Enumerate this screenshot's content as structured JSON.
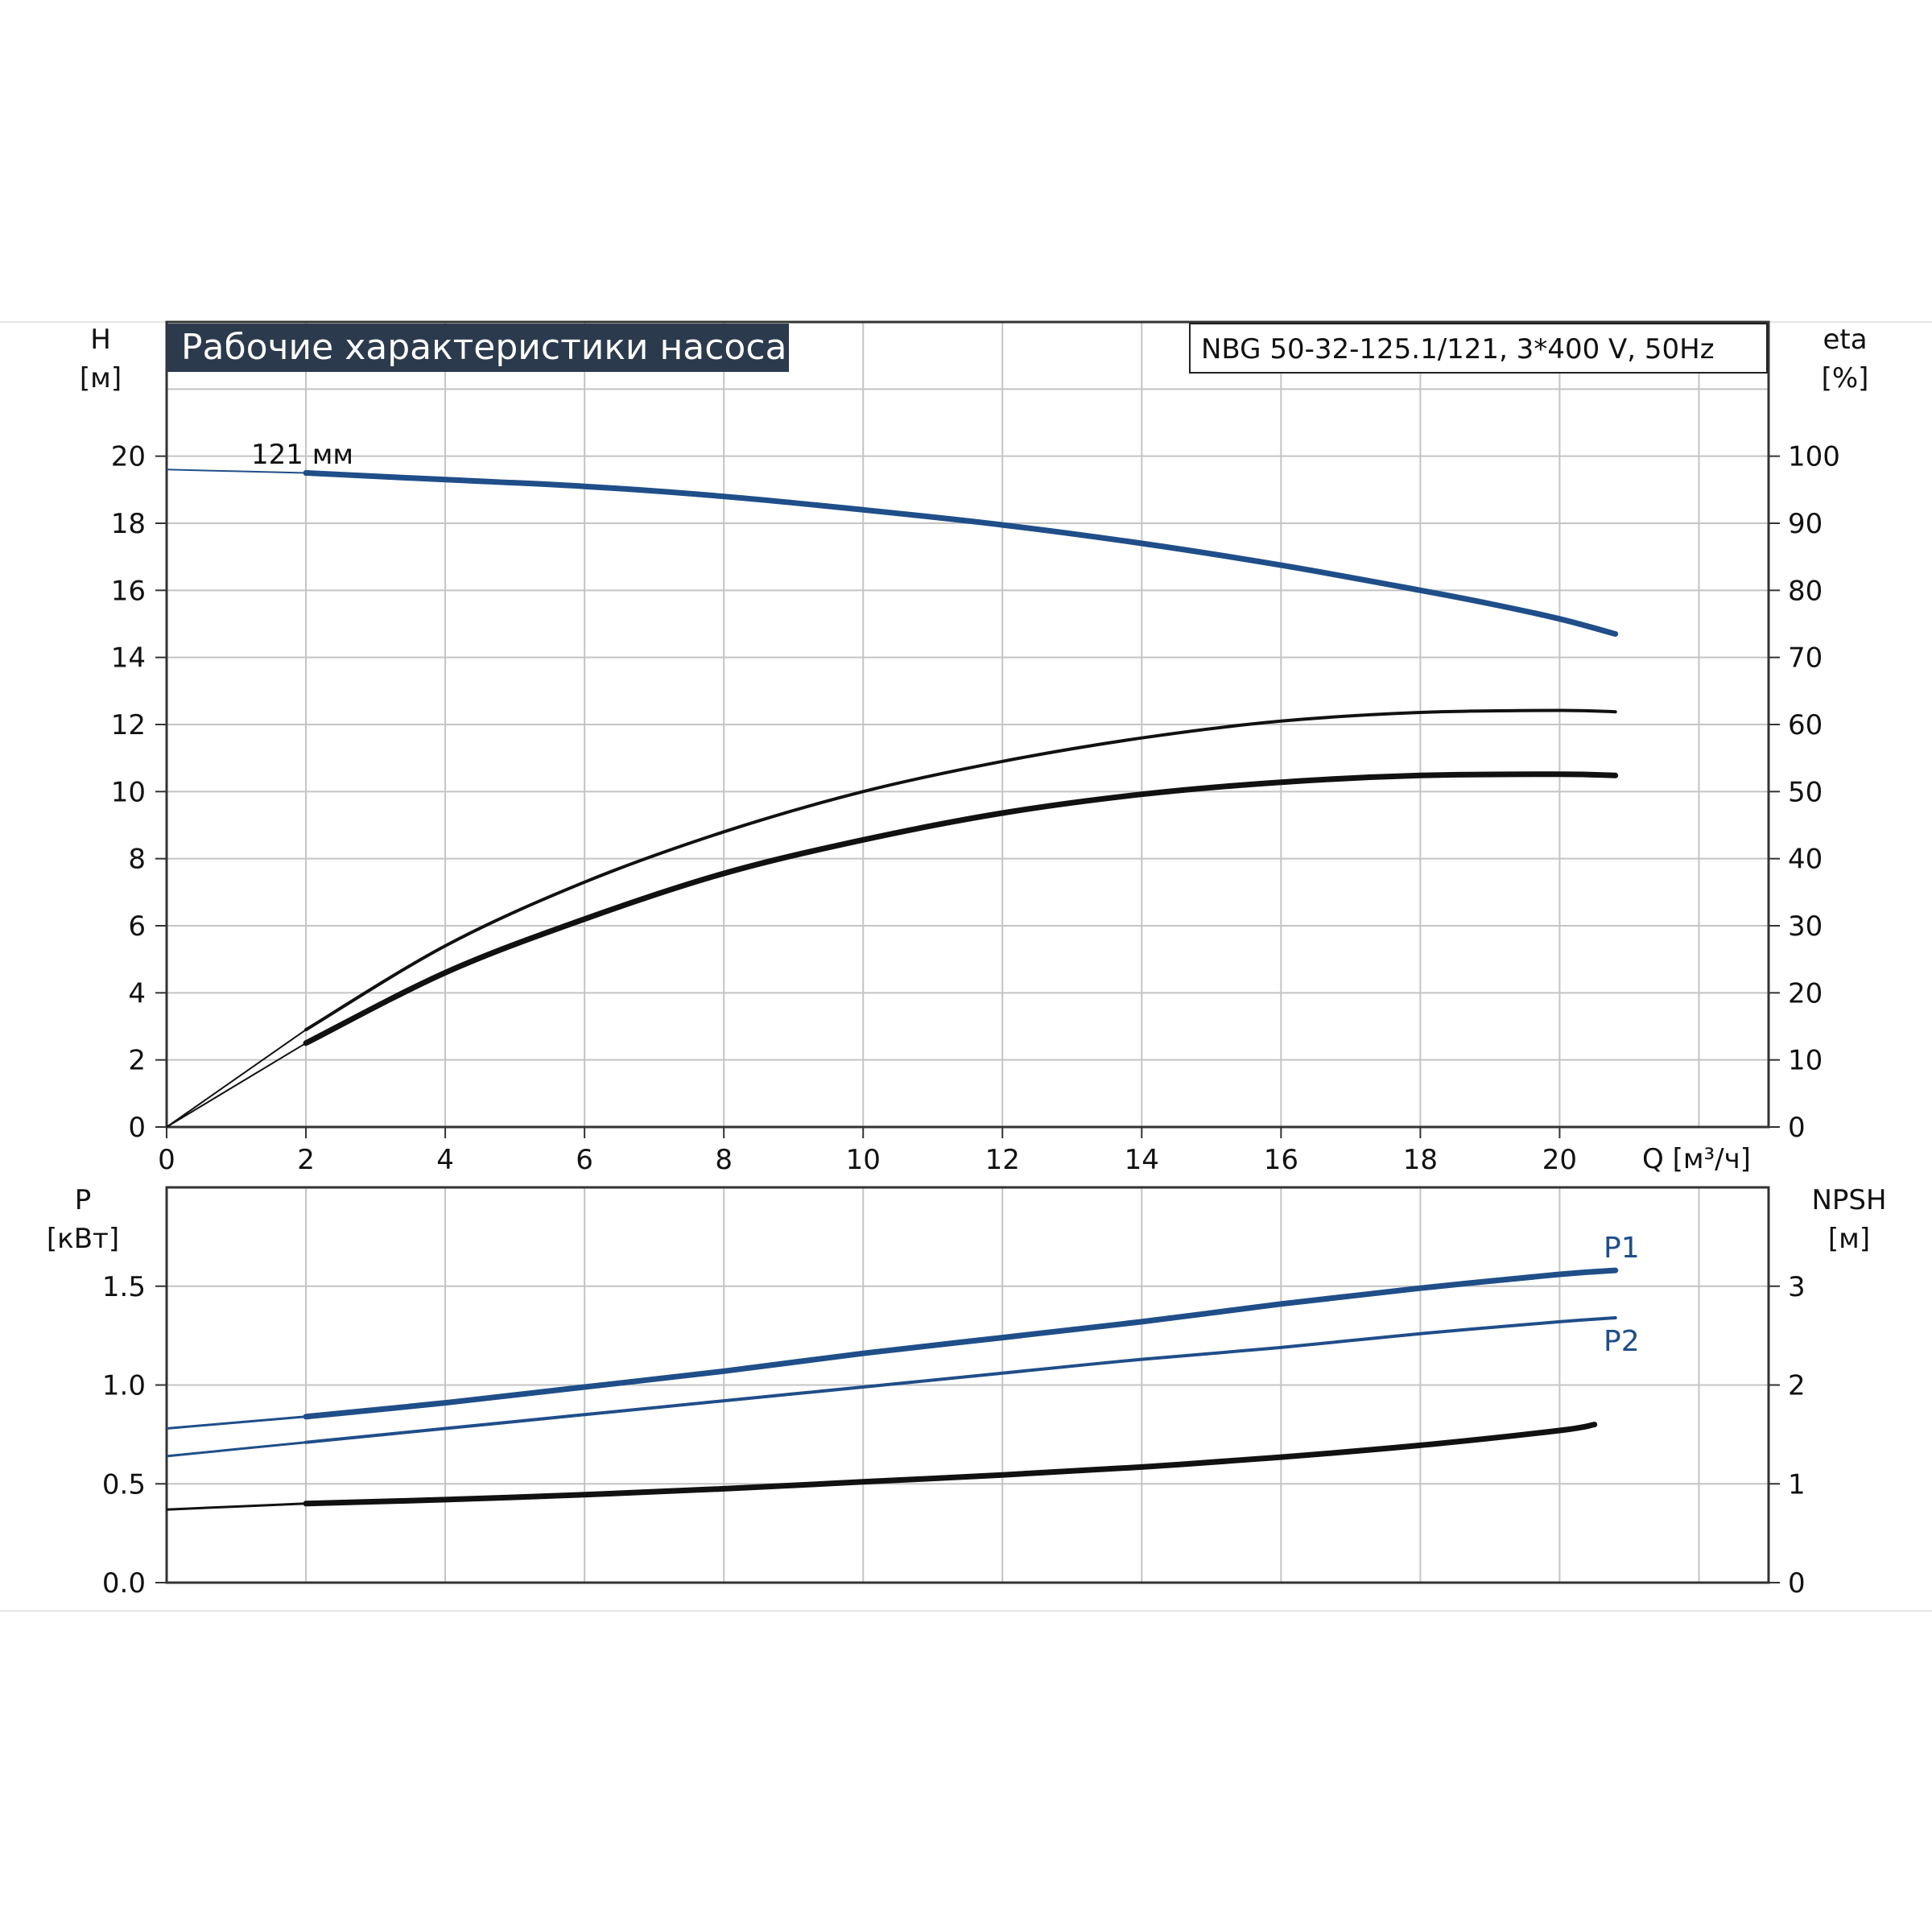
{
  "chart_data": [
    {
      "type": "line",
      "title": "Рабочие характеристики насоса",
      "subtitle": "NBG 50-32-125.1/121, 3*400 V, 50Hz",
      "xlabel": "Q [м³/ч]",
      "ylabel_top": "H",
      "ylabel_unit": "[м]",
      "y2label_top": "eta",
      "y2label_unit": "[%]",
      "xlim": [
        0,
        23
      ],
      "ylim": [
        0,
        24
      ],
      "y2lim": [
        0,
        120
      ],
      "x_ticks": [
        "0",
        "2",
        "4",
        "6",
        "8",
        "10",
        "12",
        "14",
        "16",
        "18",
        "20"
      ],
      "y_ticks": [
        "0",
        "2",
        "4",
        "6",
        "8",
        "10",
        "12",
        "14",
        "16",
        "18",
        "20"
      ],
      "y2_ticks": [
        "0",
        "10",
        "20",
        "30",
        "40",
        "50",
        "60",
        "70",
        "80",
        "90",
        "100"
      ],
      "grid": true,
      "colors": {
        "head": "#1f4e89",
        "eta": "#111111"
      },
      "annotations": [
        {
          "text": "121 мм",
          "x": 2,
          "y": 19.6
        }
      ],
      "series": [
        {
          "name": "121 мм",
          "axis": "left",
          "x": [
            0,
            2,
            4,
            6,
            8,
            10,
            12,
            14,
            16,
            18,
            19,
            20,
            20.8
          ],
          "y": [
            19.6,
            19.5,
            19.3,
            19.1,
            18.8,
            18.4,
            17.95,
            17.4,
            16.75,
            16.0,
            15.6,
            15.15,
            14.7
          ]
        },
        {
          "name": "",
          "axis": "right",
          "x": [
            0,
            2,
            4,
            6,
            8,
            10,
            12,
            14,
            16,
            18,
            20,
            20.8
          ],
          "y": [
            0,
            14.5,
            27,
            36.5,
            44,
            50,
            54.5,
            58,
            60.5,
            61.8,
            62.1,
            61.9
          ]
        },
        {
          "name": "",
          "axis": "right",
          "x": [
            0,
            2,
            4,
            6,
            8,
            10,
            12,
            14,
            16,
            18,
            20,
            20.8
          ],
          "y": [
            0,
            12.5,
            23,
            31,
            37.8,
            42.8,
            46.8,
            49.6,
            51.4,
            52.4,
            52.6,
            52.4
          ]
        }
      ]
    },
    {
      "type": "line",
      "ylabel_top": "P",
      "ylabel_unit": "[кВт]",
      "y2label_top": "NPSH",
      "y2label_unit": "[м]",
      "xlim": [
        0,
        23
      ],
      "ylim": [
        0,
        2
      ],
      "y2lim": [
        0,
        4
      ],
      "y_ticks": [
        "0.0",
        "0.5",
        "1.0",
        "1.5"
      ],
      "y2_ticks": [
        "0",
        "1",
        "2",
        "3"
      ],
      "grid": true,
      "colors": {
        "power": "#1f4e89",
        "npsh": "#111111"
      },
      "series": [
        {
          "name": "P1",
          "axis": "left",
          "x": [
            0,
            2,
            4,
            6,
            8,
            10,
            12,
            14,
            16,
            18,
            20,
            20.8
          ],
          "y": [
            0.78,
            0.84,
            0.91,
            0.99,
            1.07,
            1.16,
            1.24,
            1.32,
            1.41,
            1.49,
            1.56,
            1.58
          ]
        },
        {
          "name": "P2",
          "axis": "left",
          "x": [
            0,
            2,
            4,
            6,
            8,
            10,
            12,
            14,
            16,
            18,
            20,
            20.8
          ],
          "y": [
            0.64,
            0.71,
            0.78,
            0.85,
            0.92,
            0.99,
            1.06,
            1.13,
            1.19,
            1.26,
            1.32,
            1.34
          ]
        },
        {
          "name": "",
          "axis": "right",
          "x": [
            0,
            2,
            4,
            6,
            8,
            10,
            12,
            14,
            16,
            18,
            20,
            20.5
          ],
          "y": [
            0.74,
            0.8,
            0.84,
            0.89,
            0.95,
            1.02,
            1.09,
            1.17,
            1.27,
            1.39,
            1.54,
            1.6
          ]
        }
      ]
    }
  ]
}
